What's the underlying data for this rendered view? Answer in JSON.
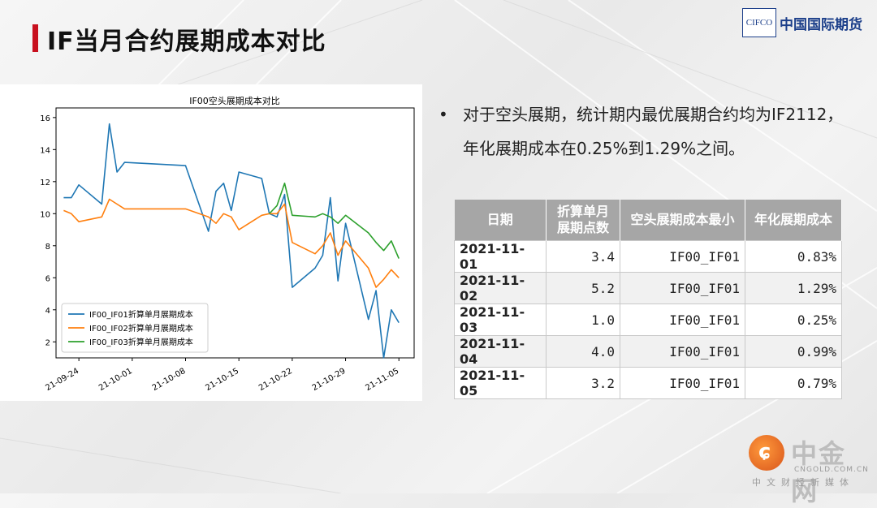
{
  "slide": {
    "title": "IF当月合约展期成本对比"
  },
  "logo": {
    "box_text": "CIFCO",
    "name": "中国国际期货"
  },
  "bullet": {
    "text": "对于空头展期，统计期内最优展期合约均为IF2112，年化展期成本在0.25%到1.29%之间。"
  },
  "table": {
    "headers": [
      "日期",
      "折算单月展期点数",
      "空头展期成本最小",
      "年化展期成本"
    ],
    "rows": [
      {
        "date": "2021-11-01",
        "points": "3.4",
        "pair": "IF00_IF01",
        "rate": "0.83%"
      },
      {
        "date": "2021-11-02",
        "points": "5.2",
        "pair": "IF00_IF01",
        "rate": "1.29%"
      },
      {
        "date": "2021-11-03",
        "points": "1.0",
        "pair": "IF00_IF01",
        "rate": "0.25%"
      },
      {
        "date": "2021-11-04",
        "points": "4.0",
        "pair": "IF00_IF01",
        "rate": "0.99%"
      },
      {
        "date": "2021-11-05",
        "points": "3.2",
        "pair": "IF00_IF01",
        "rate": "0.79%"
      }
    ]
  },
  "watermark": {
    "name": "中金网",
    "url": "CNGOLD.COM.CN",
    "sub": "中文财经新媒体"
  },
  "colors": {
    "accent": "#c8101e",
    "series1": "#1f77b4",
    "series2": "#ff7f0e",
    "series3": "#2ca02c"
  },
  "chart_data": {
    "type": "line",
    "title": "IF00空头展期成本对比",
    "xlabel": "",
    "ylabel": "",
    "ylim": [
      1,
      16.6
    ],
    "yticks": [
      2,
      4,
      6,
      8,
      10,
      12,
      14,
      16
    ],
    "xticks": [
      "21-09-24",
      "21-10-01",
      "21-10-08",
      "21-10-15",
      "21-10-22",
      "21-10-29",
      "21-11-05"
    ],
    "xtick_days": [
      0,
      7,
      14,
      21,
      28,
      35,
      42
    ],
    "xlim_days": [
      -3,
      44
    ],
    "legend_position": "lower-left",
    "x_dates": [
      "2021-09-22",
      "2021-09-23",
      "2021-09-24",
      "2021-09-27",
      "2021-09-28",
      "2021-09-29",
      "2021-09-30",
      "2021-10-08",
      "2021-10-11",
      "2021-10-12",
      "2021-10-13",
      "2021-10-14",
      "2021-10-15",
      "2021-10-18",
      "2021-10-19",
      "2021-10-20",
      "2021-10-21",
      "2021-10-22",
      "2021-10-25",
      "2021-10-26",
      "2021-10-27",
      "2021-10-28",
      "2021-10-29",
      "2021-11-01",
      "2021-11-02",
      "2021-11-03",
      "2021-11-04",
      "2021-11-05"
    ],
    "x_days": [
      -2,
      -1,
      0,
      3,
      4,
      5,
      6,
      14,
      17,
      18,
      19,
      20,
      21,
      24,
      25,
      26,
      27,
      28,
      31,
      32,
      33,
      34,
      35,
      38,
      39,
      40,
      41,
      42
    ],
    "series": [
      {
        "name": "IF00_IF01折算单月展期成本",
        "values": [
          11.0,
          11.0,
          11.8,
          10.6,
          15.6,
          12.6,
          13.2,
          13.0,
          8.9,
          11.4,
          11.9,
          10.2,
          12.6,
          12.2,
          10.0,
          9.8,
          11.2,
          5.4,
          6.6,
          7.4,
          11.0,
          5.8,
          9.4,
          3.4,
          5.2,
          1.0,
          4.0,
          3.2
        ]
      },
      {
        "name": "IF00_IF02折算单月展期成本",
        "values": [
          10.2,
          10.0,
          9.5,
          9.8,
          10.9,
          10.6,
          10.3,
          10.3,
          9.8,
          9.4,
          10.0,
          9.8,
          9.0,
          9.9,
          10.0,
          10.0,
          10.6,
          8.2,
          7.5,
          8.0,
          8.8,
          7.4,
          8.3,
          6.6,
          5.4,
          5.9,
          6.5,
          6.0
        ]
      },
      {
        "name": "IF00_IF03折算单月展期成本",
        "values": [
          null,
          null,
          null,
          null,
          null,
          null,
          null,
          null,
          null,
          null,
          null,
          null,
          null,
          null,
          10.0,
          10.5,
          11.9,
          9.9,
          9.8,
          10.0,
          9.8,
          9.4,
          9.9,
          8.8,
          8.2,
          7.7,
          8.3,
          7.2
        ]
      }
    ]
  }
}
